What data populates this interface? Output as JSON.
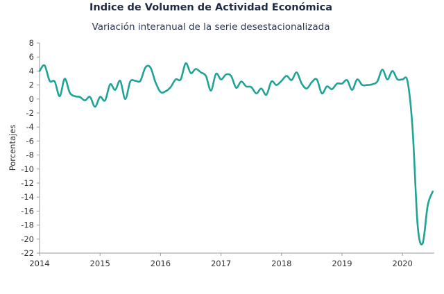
{
  "chart_data": {
    "type": "line",
    "title": "Indice de Volumen de  Actividad Económica",
    "subtitle": "Variación interanual de la serie desestacionalizada",
    "ylabel": "Porcentajes",
    "xlabel": "",
    "ylim": [
      -22,
      8
    ],
    "yticks": [
      8,
      6,
      4,
      2,
      0,
      -2,
      -4,
      -6,
      -8,
      -10,
      -12,
      -14,
      -16,
      -18,
      -20,
      -22
    ],
    "xticks": [
      "2014",
      "2015",
      "2016",
      "2017",
      "2018",
      "2019",
      "2020"
    ],
    "grid": false,
    "line_color": "#1fa396",
    "series": [
      {
        "x": [
          "2014-01",
          "2014-02",
          "2014-03",
          "2014-04",
          "2014-05",
          "2014-06",
          "2014-07",
          "2014-08",
          "2014-09",
          "2014-10",
          "2014-11",
          "2014-12",
          "2015-01",
          "2015-02",
          "2015-03",
          "2015-04",
          "2015-05",
          "2015-06",
          "2015-07",
          "2015-08",
          "2015-09",
          "2015-10",
          "2015-11",
          "2015-12",
          "2016-01",
          "2016-02",
          "2016-03",
          "2016-04",
          "2016-05",
          "2016-06",
          "2016-07",
          "2016-08",
          "2016-09",
          "2016-10",
          "2016-11",
          "2016-12",
          "2017-01",
          "2017-02",
          "2017-03",
          "2017-04",
          "2017-05",
          "2017-06",
          "2017-07",
          "2017-08",
          "2017-09",
          "2017-10",
          "2017-11",
          "2017-12",
          "2018-01",
          "2018-02",
          "2018-03",
          "2018-04",
          "2018-05",
          "2018-06",
          "2018-07",
          "2018-08",
          "2018-09",
          "2018-10",
          "2018-11",
          "2018-12",
          "2019-01",
          "2019-02",
          "2019-03",
          "2019-04",
          "2019-05",
          "2019-06",
          "2019-07",
          "2019-08",
          "2019-09",
          "2019-10",
          "2019-11",
          "2019-12",
          "2020-01",
          "2020-02",
          "2020-03",
          "2020-04",
          "2020-05",
          "2020-06",
          "2020-07"
        ],
        "values": [
          4.0,
          4.8,
          2.6,
          2.5,
          0.4,
          2.9,
          0.9,
          0.4,
          0.3,
          -0.2,
          0.3,
          -1.1,
          0.3,
          -0.2,
          2.1,
          1.3,
          2.6,
          0.0,
          2.5,
          2.6,
          2.6,
          4.5,
          4.5,
          2.4,
          1.0,
          1.1,
          1.7,
          2.8,
          2.8,
          5.1,
          3.7,
          4.3,
          3.8,
          3.3,
          1.2,
          3.6,
          2.8,
          3.5,
          3.3,
          1.6,
          2.5,
          1.8,
          1.7,
          0.8,
          1.5,
          0.6,
          2.5,
          2.0,
          2.6,
          3.3,
          2.7,
          3.8,
          2.2,
          1.5,
          2.4,
          2.8,
          0.8,
          1.8,
          1.4,
          2.2,
          2.2,
          2.7,
          1.3,
          2.8,
          2.0,
          2.0,
          2.1,
          2.5,
          4.2,
          2.8,
          4.0,
          2.8,
          2.8,
          2.5,
          -4.3,
          -18.0,
          -20.6,
          -15.2,
          -13.2
        ]
      }
    ]
  }
}
